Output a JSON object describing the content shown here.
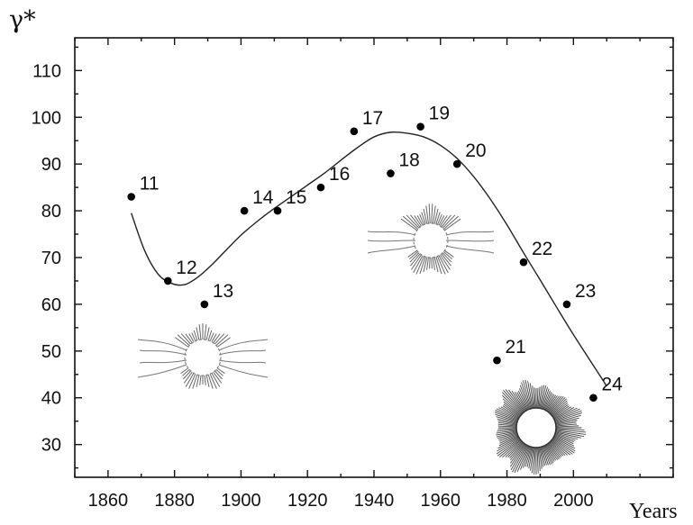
{
  "chart_data": {
    "type": "scatter",
    "ylabel": "γ*",
    "xlabel": "Years",
    "xlim": [
      1850,
      2030
    ],
    "ylim": [
      23,
      117
    ],
    "x_ticks": [
      1860,
      1880,
      1900,
      1920,
      1940,
      1960,
      1980,
      2000
    ],
    "y_ticks": [
      30,
      40,
      50,
      60,
      70,
      80,
      90,
      100,
      110
    ],
    "grid": false,
    "series": [
      {
        "points": [
          {
            "label": "11",
            "x": 1867,
            "y": 83
          },
          {
            "label": "12",
            "x": 1878,
            "y": 65
          },
          {
            "label": "13",
            "x": 1889,
            "y": 60
          },
          {
            "label": "14",
            "x": 1901,
            "y": 80
          },
          {
            "label": "15",
            "x": 1911,
            "y": 80
          },
          {
            "label": "16",
            "x": 1924,
            "y": 85
          },
          {
            "label": "17",
            "x": 1934,
            "y": 97
          },
          {
            "label": "18",
            "x": 1945,
            "y": 88
          },
          {
            "label": "19",
            "x": 1954,
            "y": 98
          },
          {
            "label": "20",
            "x": 1965,
            "y": 90
          },
          {
            "label": "21",
            "x": 1977,
            "y": 48
          },
          {
            "label": "22",
            "x": 1985,
            "y": 69
          },
          {
            "label": "23",
            "x": 1998,
            "y": 60
          },
          {
            "label": "24",
            "x": 2006,
            "y": 40
          }
        ]
      }
    ],
    "fit_curve": {
      "x": [
        1867,
        1871,
        1875,
        1879,
        1883,
        1887,
        1891,
        1895,
        1900,
        1905,
        1910,
        1915,
        1920,
        1925,
        1930,
        1935,
        1940,
        1945,
        1950,
        1955,
        1960,
        1965,
        1970,
        1975,
        1980,
        1985,
        1990,
        1995,
        2000,
        2005,
        2010
      ],
      "y": [
        79.5,
        71.5,
        66.5,
        64.5,
        64.2,
        65.8,
        68.3,
        71.2,
        74.8,
        77.8,
        80.5,
        83.0,
        85.5,
        88.0,
        90.8,
        93.5,
        95.8,
        96.8,
        96.6,
        95.8,
        94.0,
        91.2,
        87.3,
        82.5,
        77.0,
        71.0,
        65.2,
        59.3,
        53.5,
        48.0,
        42.5
      ]
    },
    "insets": [
      "sunburst-corona-icon",
      "streamer-corona-icon",
      "radial-corona-icon"
    ]
  }
}
